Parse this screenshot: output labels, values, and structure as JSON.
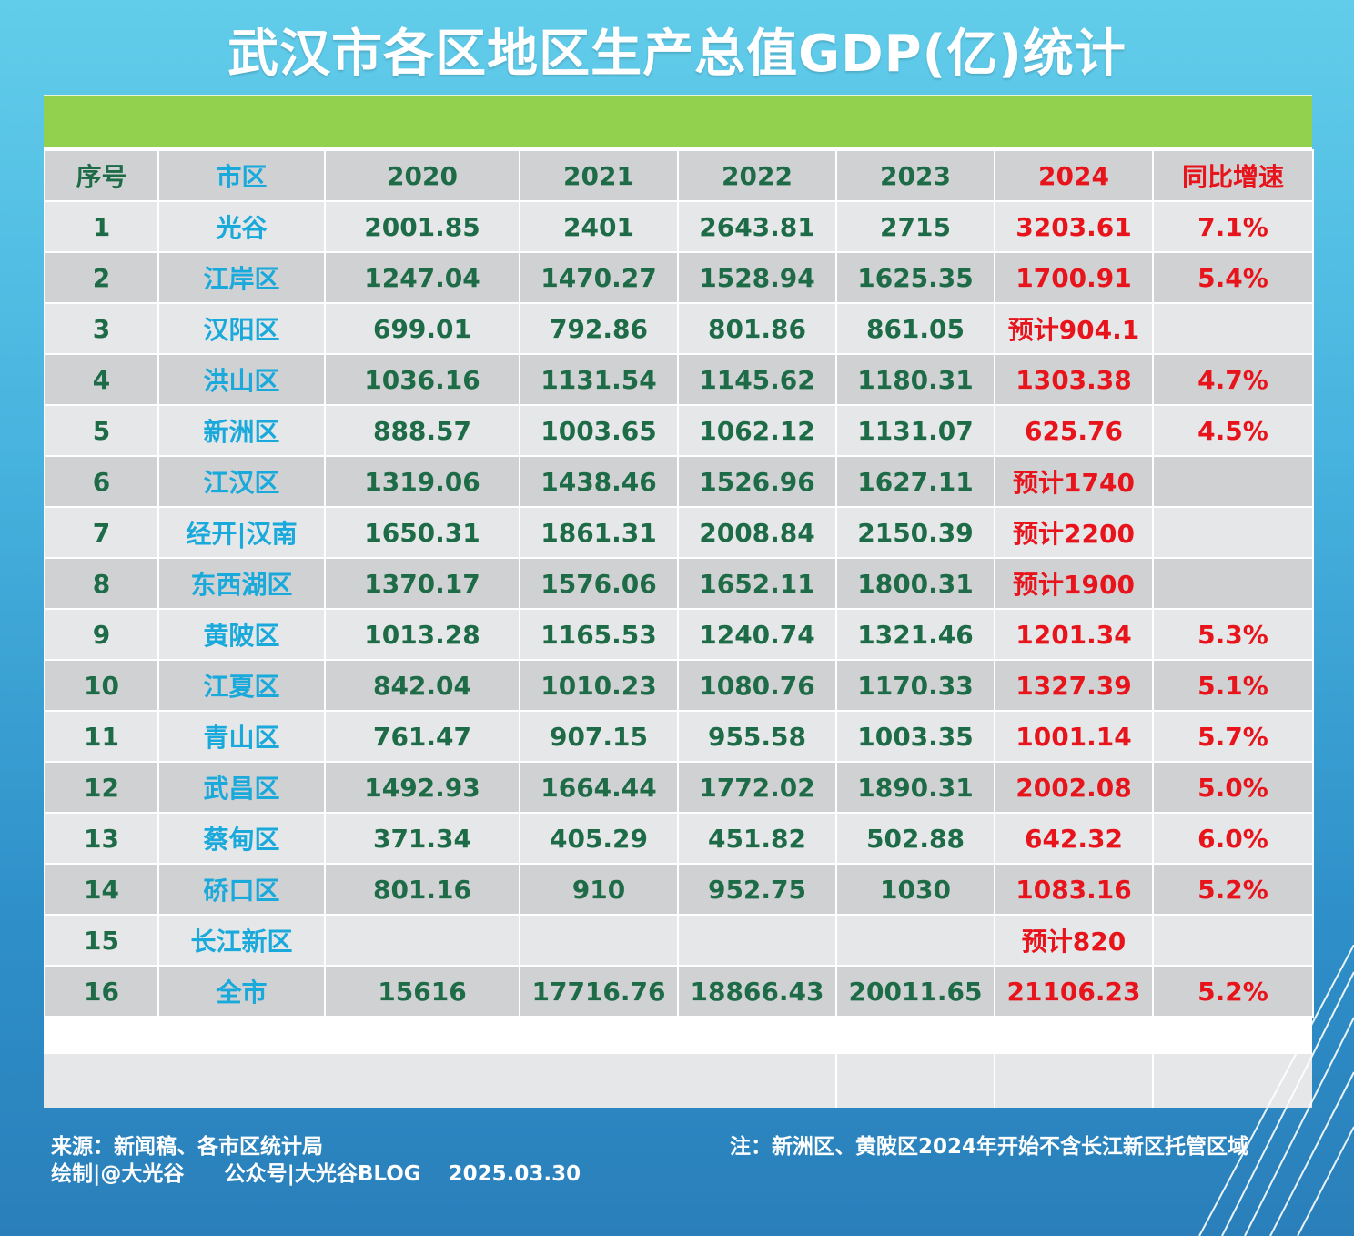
{
  "title": "武汉市各区地区生产总值GDP(亿)统计",
  "colors": {
    "background_top": "#62cdea",
    "background_bottom": "#2a7fba",
    "band": "#92d14e",
    "row_dark": "#d0d1d3",
    "row_light": "#e6e7e9",
    "text_green": "#1d6b47",
    "text_cyan": "#1aa9db",
    "text_red": "#e8141c"
  },
  "chart_data": {
    "type": "table",
    "columns": [
      "序号",
      "市区",
      "2020",
      "2021",
      "2022",
      "2023",
      "2024",
      "同比增速"
    ],
    "rows": [
      [
        "1",
        "光谷",
        "2001.85",
        "2401",
        "2643.81",
        "2715",
        "3203.61",
        "7.1%"
      ],
      [
        "2",
        "江岸区",
        "1247.04",
        "1470.27",
        "1528.94",
        "1625.35",
        "1700.91",
        "5.4%"
      ],
      [
        "3",
        "汉阳区",
        "699.01",
        "792.86",
        "801.86",
        "861.05",
        "预计904.1",
        ""
      ],
      [
        "4",
        "洪山区",
        "1036.16",
        "1131.54",
        "1145.62",
        "1180.31",
        "1303.38",
        "4.7%"
      ],
      [
        "5",
        "新洲区",
        "888.57",
        "1003.65",
        "1062.12",
        "1131.07",
        "625.76",
        "4.5%"
      ],
      [
        "6",
        "江汉区",
        "1319.06",
        "1438.46",
        "1526.96",
        "1627.11",
        "预计1740",
        ""
      ],
      [
        "7",
        "经开|汉南",
        "1650.31",
        "1861.31",
        "2008.84",
        "2150.39",
        "预计2200",
        ""
      ],
      [
        "8",
        "东西湖区",
        "1370.17",
        "1576.06",
        "1652.11",
        "1800.31",
        "预计1900",
        ""
      ],
      [
        "9",
        "黄陂区",
        "1013.28",
        "1165.53",
        "1240.74",
        "1321.46",
        "1201.34",
        "5.3%"
      ],
      [
        "10",
        "江夏区",
        "842.04",
        "1010.23",
        "1080.76",
        "1170.33",
        "1327.39",
        "5.1%"
      ],
      [
        "11",
        "青山区",
        "761.47",
        "907.15",
        "955.58",
        "1003.35",
        "1001.14",
        "5.7%"
      ],
      [
        "12",
        "武昌区",
        "1492.93",
        "1664.44",
        "1772.02",
        "1890.31",
        "2002.08",
        "5.0%"
      ],
      [
        "13",
        "蔡甸区",
        "371.34",
        "405.29",
        "451.82",
        "502.88",
        "642.32",
        "6.0%"
      ],
      [
        "14",
        "硚口区",
        "801.16",
        "910",
        "952.75",
        "1030",
        "1083.16",
        "5.2%"
      ],
      [
        "15",
        "长江新区",
        "",
        "",
        "",
        "",
        "预计820",
        ""
      ],
      [
        "16",
        "全市",
        "15616",
        "17716.76",
        "18866.43",
        "20011.65",
        "21106.23",
        "5.2%"
      ]
    ]
  },
  "footer": {
    "source": "来源：新闻稿、各市区统计局",
    "credit": "绘制|@大光谷",
    "account": "公众号|大光谷BLOG",
    "date": "2025.03.30",
    "note": "注：新洲区、黄陂区2024年开始不含长江新区托管区域"
  }
}
